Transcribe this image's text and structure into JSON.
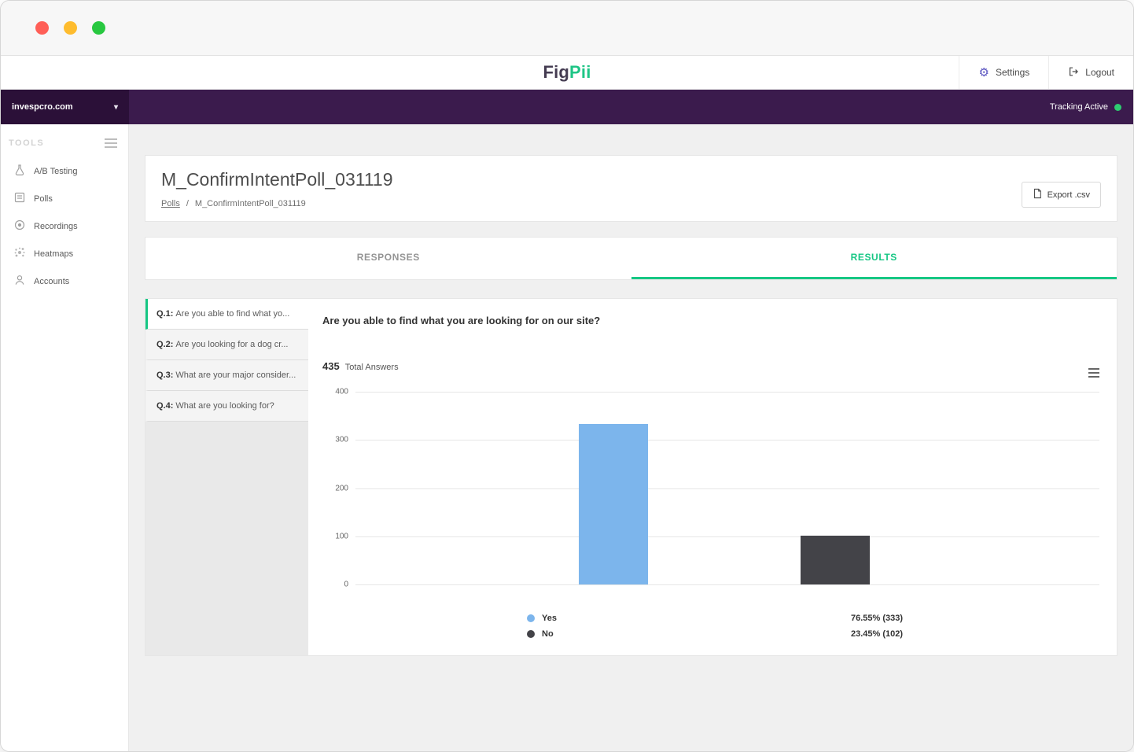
{
  "header": {
    "logo_fig": "Fig",
    "logo_pii": "Pii",
    "settings_label": "Settings",
    "logout_label": "Logout"
  },
  "site_bar": {
    "site_name": "invespcro.com",
    "tracking_label": "Tracking Active"
  },
  "sidebar": {
    "section_label": "TOOLS",
    "items": [
      {
        "label": "A/B Testing"
      },
      {
        "label": "Polls"
      },
      {
        "label": "Recordings"
      },
      {
        "label": "Heatmaps"
      },
      {
        "label": "Accounts"
      }
    ]
  },
  "page": {
    "title": "M_ConfirmIntentPoll_031119",
    "breadcrumb_root": "Polls",
    "breadcrumb_separator": "/",
    "breadcrumb_current": "M_ConfirmIntentPoll_031119",
    "export_label": "Export .csv"
  },
  "tabs": {
    "responses": "RESPONSES",
    "results": "RESULTS"
  },
  "questions": [
    {
      "prefix": "Q.1:",
      "label": "Are you able to find what yo..."
    },
    {
      "prefix": "Q.2:",
      "label": "Are you looking for a dog cr..."
    },
    {
      "prefix": "Q.3:",
      "label": "What are your major consider..."
    },
    {
      "prefix": "Q.4:",
      "label": "What are you looking for?"
    }
  ],
  "results_panel": {
    "question_title": "Are you able to find what you are looking for on our site?",
    "total_count": "435",
    "total_label": "Total Answers"
  },
  "chart_data": {
    "type": "bar",
    "title": "435 Total Answers",
    "categories": [
      "Yes",
      "No"
    ],
    "values": [
      333,
      102
    ],
    "colors": [
      "#7cb5ec",
      "#434348"
    ],
    "ylim": [
      0,
      400
    ],
    "yticks": [
      0,
      100,
      200,
      300,
      400
    ],
    "grid": true,
    "legend_position": "bottom",
    "legend": [
      {
        "label": "Yes",
        "value": "76.55% (333)"
      },
      {
        "label": "No",
        "value": "23.45% (102)"
      }
    ],
    "bar_centers_pct": [
      34.7,
      64.5
    ],
    "bar_width_pct": 9.3
  },
  "colors": {
    "accent_green": "#16c784",
    "purple_dark": "#3b1b4d",
    "purple_darker": "#2b1038",
    "bar_yes": "#7cb5ec",
    "bar_no": "#434348"
  }
}
